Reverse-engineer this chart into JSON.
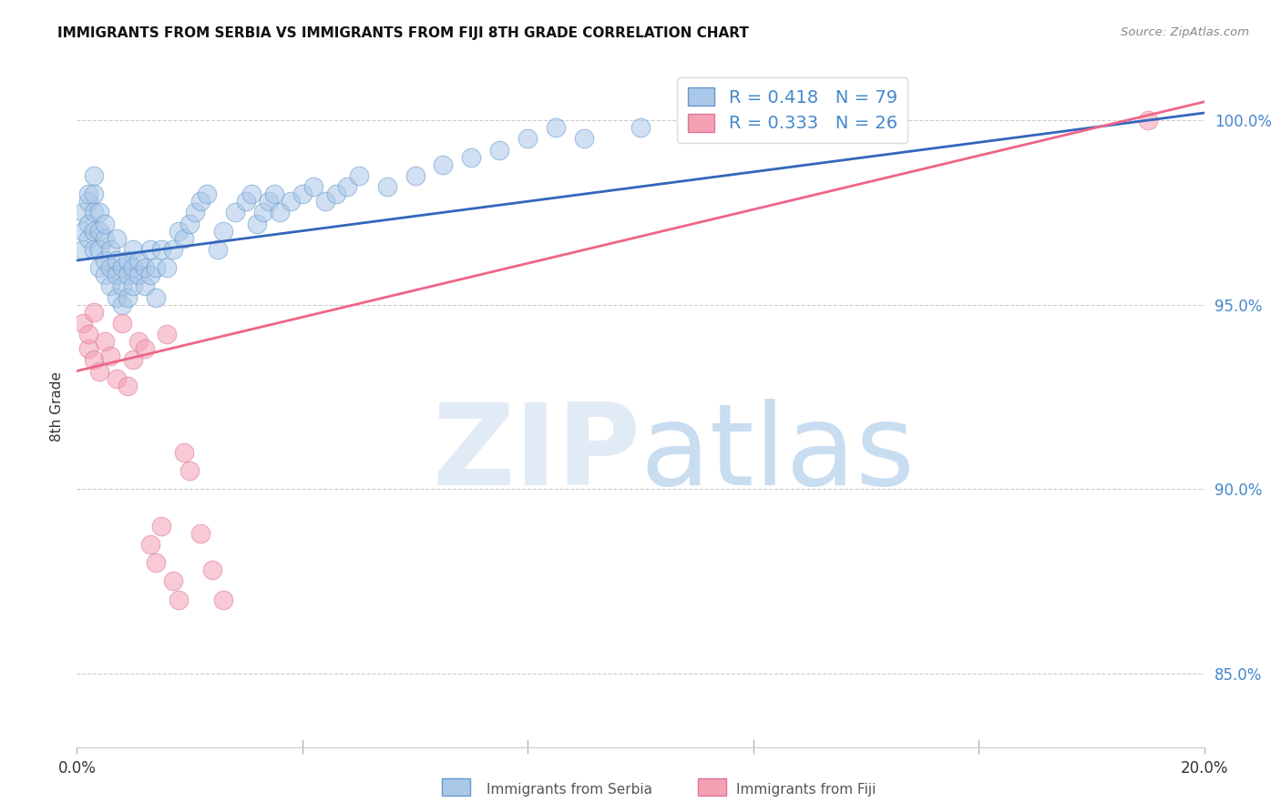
{
  "title": "IMMIGRANTS FROM SERBIA VS IMMIGRANTS FROM FIJI 8TH GRADE CORRELATION CHART",
  "source": "Source: ZipAtlas.com",
  "ylabel": "8th Grade",
  "y_ticks": [
    85.0,
    90.0,
    95.0,
    100.0
  ],
  "y_tick_labels": [
    "85.0%",
    "90.0%",
    "95.0%",
    "100.0%"
  ],
  "serbia_R": 0.418,
  "serbia_N": 79,
  "fiji_R": 0.333,
  "fiji_N": 26,
  "serbia_color": "#aac8e8",
  "fiji_color": "#f4a0b5",
  "serbia_edge_color": "#6699cc",
  "fiji_edge_color": "#dd7799",
  "serbia_line_color": "#3366bb",
  "fiji_line_color": "#ee6688",
  "serbia_x": [
    0.001,
    0.001,
    0.001,
    0.002,
    0.002,
    0.002,
    0.002,
    0.003,
    0.003,
    0.003,
    0.003,
    0.003,
    0.004,
    0.004,
    0.004,
    0.004,
    0.005,
    0.005,
    0.005,
    0.005,
    0.006,
    0.006,
    0.006,
    0.007,
    0.007,
    0.007,
    0.007,
    0.008,
    0.008,
    0.008,
    0.009,
    0.009,
    0.009,
    0.01,
    0.01,
    0.01,
    0.011,
    0.011,
    0.012,
    0.012,
    0.013,
    0.013,
    0.014,
    0.014,
    0.015,
    0.016,
    0.017,
    0.018,
    0.019,
    0.02,
    0.021,
    0.022,
    0.023,
    0.025,
    0.026,
    0.028,
    0.03,
    0.031,
    0.032,
    0.033,
    0.034,
    0.035,
    0.036,
    0.038,
    0.04,
    0.042,
    0.044,
    0.046,
    0.048,
    0.05,
    0.055,
    0.06,
    0.065,
    0.07,
    0.075,
    0.08,
    0.085,
    0.09,
    0.1
  ],
  "serbia_y": [
    96.5,
    97.0,
    97.5,
    96.8,
    97.2,
    97.8,
    98.0,
    96.5,
    97.0,
    97.5,
    98.0,
    98.5,
    96.0,
    96.5,
    97.0,
    97.5,
    95.8,
    96.2,
    96.8,
    97.2,
    95.5,
    96.0,
    96.5,
    95.2,
    95.8,
    96.2,
    96.8,
    95.0,
    95.5,
    96.0,
    95.2,
    95.8,
    96.2,
    95.5,
    96.0,
    96.5,
    95.8,
    96.2,
    95.5,
    96.0,
    95.8,
    96.5,
    95.2,
    96.0,
    96.5,
    96.0,
    96.5,
    97.0,
    96.8,
    97.2,
    97.5,
    97.8,
    98.0,
    96.5,
    97.0,
    97.5,
    97.8,
    98.0,
    97.2,
    97.5,
    97.8,
    98.0,
    97.5,
    97.8,
    98.0,
    98.2,
    97.8,
    98.0,
    98.2,
    98.5,
    98.2,
    98.5,
    98.8,
    99.0,
    99.2,
    99.5,
    99.8,
    99.5,
    99.8
  ],
  "fiji_x": [
    0.001,
    0.002,
    0.002,
    0.003,
    0.003,
    0.004,
    0.005,
    0.006,
    0.007,
    0.008,
    0.009,
    0.01,
    0.011,
    0.012,
    0.013,
    0.014,
    0.015,
    0.016,
    0.017,
    0.018,
    0.019,
    0.02,
    0.022,
    0.024,
    0.026,
    0.19
  ],
  "fiji_y": [
    94.5,
    93.8,
    94.2,
    93.5,
    94.8,
    93.2,
    94.0,
    93.6,
    93.0,
    94.5,
    92.8,
    93.5,
    94.0,
    93.8,
    88.5,
    88.0,
    89.0,
    94.2,
    87.5,
    87.0,
    91.0,
    90.5,
    88.8,
    87.8,
    87.0,
    100.0
  ],
  "serbia_trendline": [
    0.0,
    0.2,
    96.2,
    100.2
  ],
  "fiji_trendline": [
    0.0,
    0.2,
    93.2,
    100.5
  ],
  "xmin": 0.0,
  "xmax": 0.2,
  "ymin": 83.0,
  "ymax": 101.5
}
